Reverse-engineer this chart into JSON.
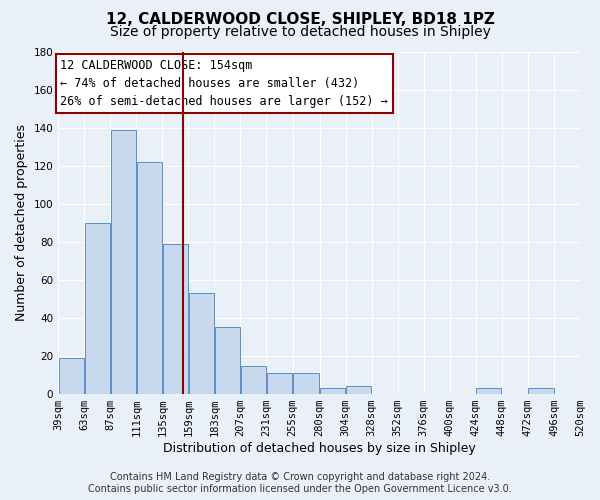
{
  "title": "12, CALDERWOOD CLOSE, SHIPLEY, BD18 1PZ",
  "subtitle": "Size of property relative to detached houses in Shipley",
  "xlabel": "Distribution of detached houses by size in Shipley",
  "ylabel": "Number of detached properties",
  "bin_edges": [
    39,
    63,
    87,
    111,
    135,
    159,
    183,
    207,
    231,
    255,
    280,
    304,
    328,
    352,
    376,
    400,
    424,
    448,
    472,
    496,
    520
  ],
  "bar_heights": [
    19,
    90,
    139,
    122,
    79,
    53,
    35,
    15,
    11,
    11,
    3,
    4,
    0,
    0,
    0,
    0,
    3,
    0,
    3,
    0
  ],
  "bar_color": "#c9d9ed",
  "bar_edge_color": "#5b8fc9",
  "tick_labels": [
    "39sqm",
    "63sqm",
    "87sqm",
    "111sqm",
    "135sqm",
    "159sqm",
    "183sqm",
    "207sqm",
    "231sqm",
    "255sqm",
    "280sqm",
    "304sqm",
    "328sqm",
    "352sqm",
    "376sqm",
    "400sqm",
    "424sqm",
    "448sqm",
    "472sqm",
    "496sqm",
    "520sqm"
  ],
  "ylim": [
    0,
    180
  ],
  "yticks": [
    0,
    20,
    40,
    60,
    80,
    100,
    120,
    140,
    160,
    180
  ],
  "red_line_x": 154,
  "annotation_title": "12 CALDERWOOD CLOSE: 154sqm",
  "annotation_line1": "← 74% of detached houses are smaller (432)",
  "annotation_line2": "26% of semi-detached houses are larger (152) →",
  "footer_line1": "Contains HM Land Registry data © Crown copyright and database right 2024.",
  "footer_line2": "Contains public sector information licensed under the Open Government Licence v3.0.",
  "bg_color": "#eaf0f8",
  "plot_bg_color": "#eaf0f8",
  "grid_color": "#ffffff",
  "title_fontsize": 11,
  "subtitle_fontsize": 10,
  "axis_label_fontsize": 9,
  "tick_fontsize": 7.5,
  "annotation_fontsize": 8.5,
  "footer_fontsize": 7
}
